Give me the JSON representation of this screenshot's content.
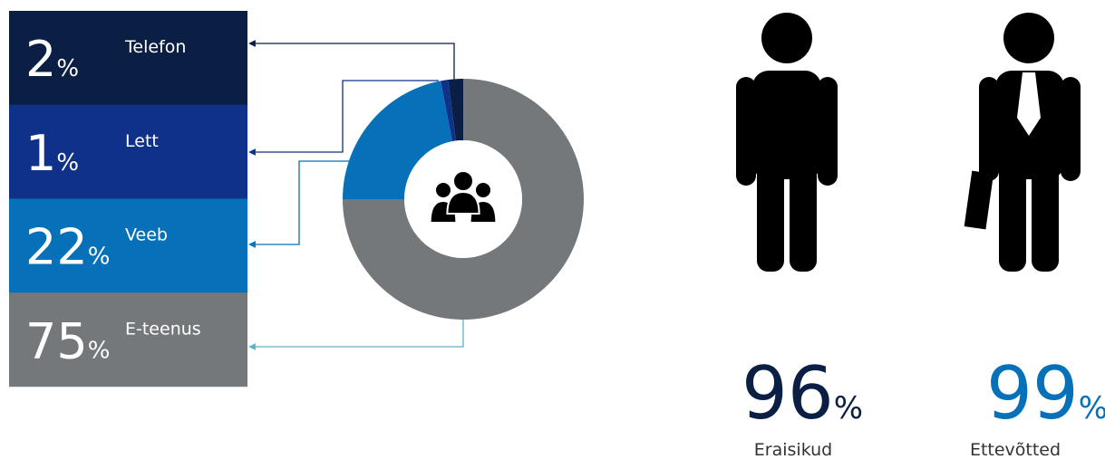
{
  "chart_data": {
    "type": "donut",
    "categories": [
      "Telefon",
      "Lett",
      "Veeb",
      "E-teenus"
    ],
    "values": [
      2,
      1,
      22,
      75
    ],
    "unit": "%",
    "colors": [
      "#0b1f45",
      "#10318a",
      "#0670b8",
      "#75787b"
    ]
  },
  "stats": [
    {
      "value": 96,
      "unit": "%",
      "label": "Eraisikud",
      "color": "#0b1f45"
    },
    {
      "value": 99,
      "unit": "%",
      "label": "Ettevõtted",
      "color": "#0670b8"
    }
  ]
}
